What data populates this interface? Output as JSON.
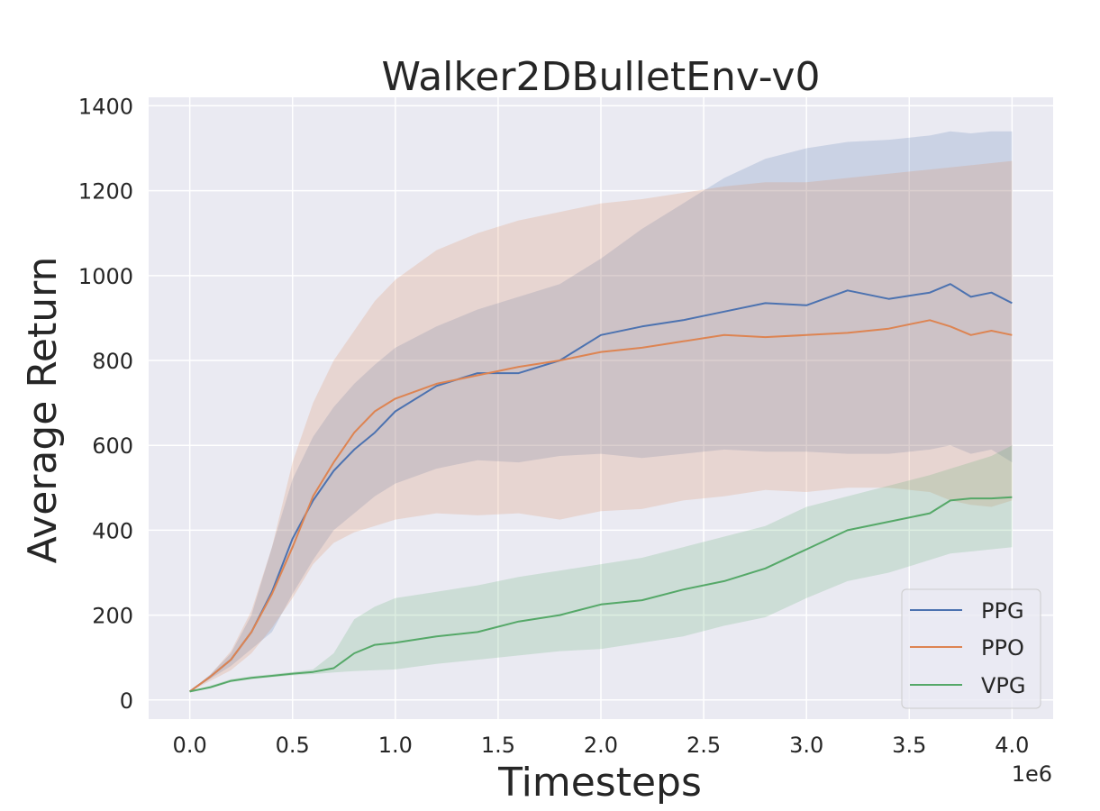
{
  "chart_data": {
    "type": "line",
    "title": "Walker2DBulletEnv-v0",
    "xlabel": "Timesteps",
    "ylabel": "Average Return",
    "x_offset_label": "1e6",
    "xlim": [
      -0.2,
      4.2
    ],
    "ylim": [
      -45,
      1420
    ],
    "x_ticks": [
      0.0,
      0.5,
      1.0,
      1.5,
      2.0,
      2.5,
      3.0,
      3.5,
      4.0
    ],
    "x_tick_labels": [
      "0.0",
      "0.5",
      "1.0",
      "1.5",
      "2.0",
      "2.5",
      "3.0",
      "3.5",
      "4.0"
    ],
    "y_ticks": [
      0,
      200,
      400,
      600,
      800,
      1000,
      1200,
      1400
    ],
    "y_tick_labels": [
      "0",
      "200",
      "400",
      "600",
      "800",
      "1000",
      "1200",
      "1400"
    ],
    "grid": true,
    "legend_position": "bottom-right",
    "background": "#eaeaf2",
    "series": [
      {
        "name": "PPG",
        "color": "#4c72b0",
        "x": [
          0,
          0.1,
          0.2,
          0.3,
          0.4,
          0.5,
          0.6,
          0.7,
          0.8,
          0.9,
          1.0,
          1.2,
          1.4,
          1.6,
          1.8,
          2.0,
          2.2,
          2.4,
          2.6,
          2.8,
          3.0,
          3.2,
          3.4,
          3.6,
          3.7,
          3.8,
          3.9,
          4.0
        ],
        "values": [
          20,
          55,
          95,
          160,
          255,
          380,
          470,
          540,
          590,
          630,
          680,
          740,
          770,
          770,
          800,
          860,
          880,
          895,
          915,
          935,
          930,
          965,
          945,
          960,
          980,
          950,
          960,
          935
        ],
        "upper": [
          20,
          60,
          110,
          200,
          360,
          520,
          620,
          690,
          745,
          790,
          830,
          880,
          920,
          950,
          980,
          1040,
          1110,
          1170,
          1230,
          1275,
          1300,
          1315,
          1320,
          1330,
          1340,
          1335,
          1340,
          1340
        ],
        "lower": [
          20,
          50,
          80,
          120,
          160,
          250,
          330,
          400,
          440,
          480,
          510,
          545,
          565,
          560,
          575,
          580,
          570,
          580,
          590,
          585,
          585,
          580,
          580,
          590,
          600,
          580,
          590,
          560
        ]
      },
      {
        "name": "PPO",
        "color": "#dd8452",
        "x": [
          0,
          0.1,
          0.2,
          0.3,
          0.4,
          0.5,
          0.6,
          0.7,
          0.8,
          0.9,
          1.0,
          1.2,
          1.4,
          1.6,
          1.8,
          2.0,
          2.2,
          2.4,
          2.6,
          2.8,
          3.0,
          3.2,
          3.4,
          3.6,
          3.7,
          3.8,
          3.9,
          4.0
        ],
        "values": [
          20,
          55,
          95,
          160,
          250,
          360,
          480,
          560,
          630,
          680,
          710,
          745,
          765,
          785,
          800,
          820,
          830,
          845,
          860,
          855,
          860,
          865,
          875,
          895,
          880,
          860,
          870,
          860
        ],
        "upper": [
          20,
          60,
          115,
          210,
          360,
          560,
          700,
          800,
          870,
          940,
          990,
          1060,
          1100,
          1130,
          1150,
          1170,
          1180,
          1195,
          1210,
          1220,
          1220,
          1230,
          1240,
          1250,
          1255,
          1260,
          1265,
          1270
        ],
        "lower": [
          20,
          45,
          70,
          110,
          170,
          240,
          320,
          370,
          395,
          410,
          425,
          440,
          435,
          440,
          425,
          445,
          450,
          470,
          480,
          495,
          490,
          500,
          500,
          490,
          470,
          460,
          455,
          470
        ]
      },
      {
        "name": "VPG",
        "color": "#55a868",
        "x": [
          0,
          0.1,
          0.2,
          0.3,
          0.4,
          0.5,
          0.6,
          0.7,
          0.8,
          0.9,
          1.0,
          1.2,
          1.4,
          1.6,
          1.8,
          2.0,
          2.2,
          2.4,
          2.6,
          2.8,
          3.0,
          3.2,
          3.4,
          3.6,
          3.7,
          3.8,
          3.9,
          4.0
        ],
        "values": [
          20,
          30,
          45,
          52,
          57,
          62,
          66,
          75,
          110,
          130,
          135,
          150,
          160,
          185,
          200,
          225,
          235,
          260,
          280,
          310,
          355,
          400,
          420,
          440,
          470,
          475,
          475,
          478
        ],
        "upper": [
          20,
          34,
          49,
          56,
          61,
          66,
          72,
          110,
          190,
          220,
          240,
          255,
          270,
          290,
          305,
          320,
          335,
          360,
          385,
          410,
          455,
          480,
          505,
          530,
          545,
          560,
          575,
          600
        ],
        "lower": [
          20,
          27,
          42,
          49,
          54,
          58,
          61,
          65,
          68,
          70,
          72,
          85,
          95,
          105,
          115,
          120,
          135,
          150,
          175,
          195,
          240,
          280,
          300,
          330,
          345,
          350,
          355,
          360
        ]
      }
    ]
  }
}
